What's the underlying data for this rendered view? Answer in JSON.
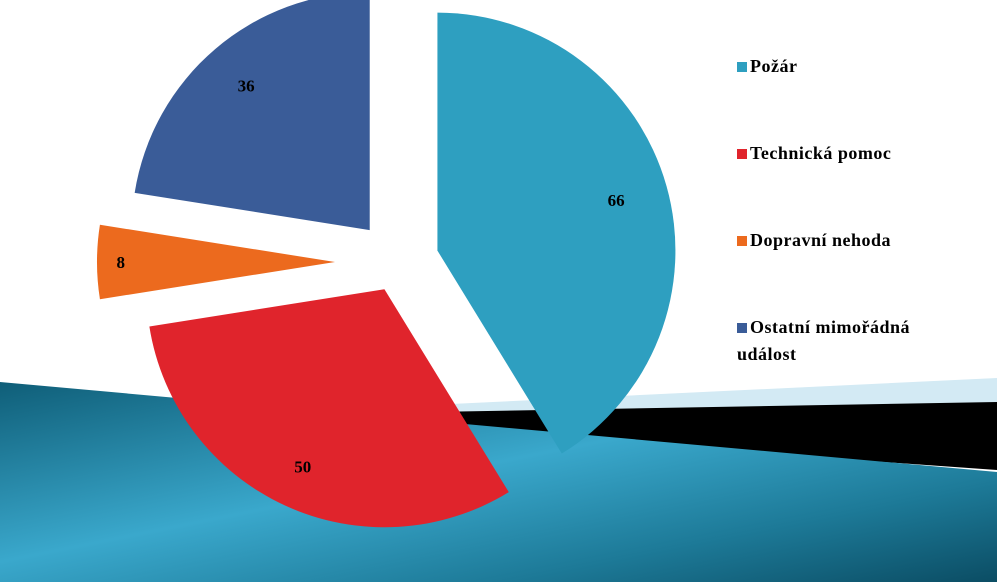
{
  "chart_data": {
    "type": "pie",
    "style": "exploded",
    "categories": [
      "Požár",
      "Technická pomoc",
      "Dopravní nehoda",
      "Ostatní mimořádná událost"
    ],
    "values": [
      66,
      50,
      8,
      36
    ],
    "colors": [
      "#2e9fc0",
      "#e0242c",
      "#ec6a1e",
      "#3a5c98"
    ],
    "legend_position": "right",
    "data_labels": true
  }
}
